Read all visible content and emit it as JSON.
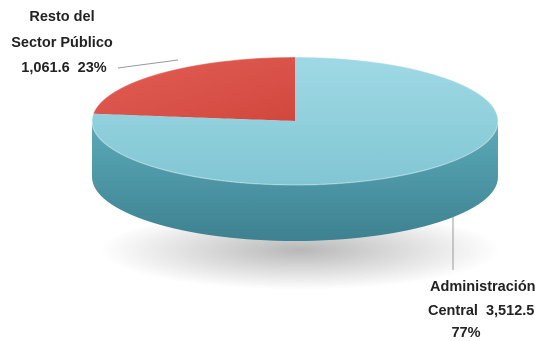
{
  "chart_data": {
    "type": "pie",
    "style": "3d",
    "title": "",
    "slices": [
      {
        "name_lines": [
          "Resto del",
          "Sector Público"
        ],
        "value": 1061.6,
        "value_label": "1,061.6",
        "percent": 23,
        "percent_label": "23%",
        "color": "#e0534a"
      },
      {
        "name_lines": [
          "Administración",
          "Central"
        ],
        "value": 3512.5,
        "value_label": "3,512.5",
        "percent": 77,
        "percent_label": "77%",
        "color": "#8fd0dd"
      }
    ],
    "legend": "none"
  }
}
